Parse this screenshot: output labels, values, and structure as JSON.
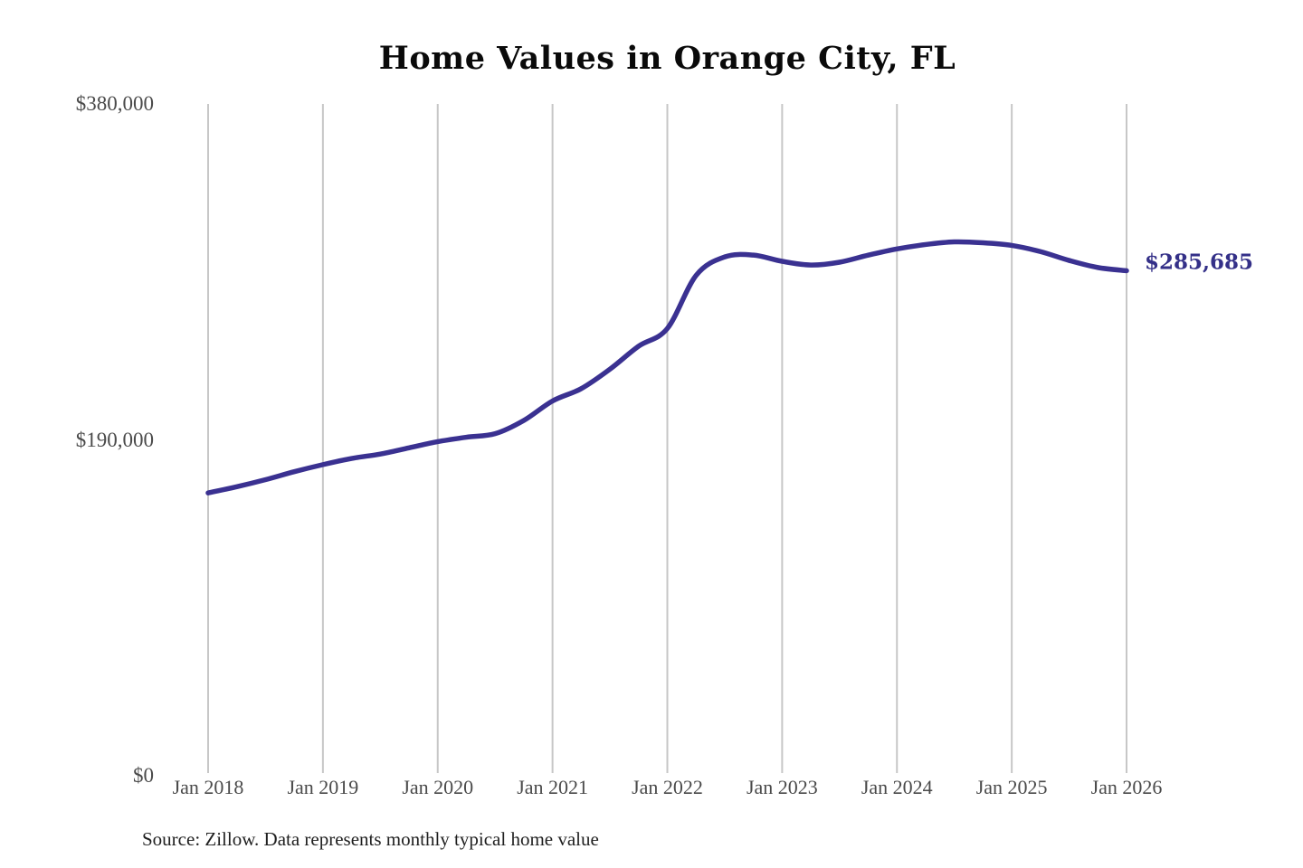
{
  "title": "Home Values in Orange City, FL",
  "source_note": "Source: Zillow. Data represents monthly typical home value",
  "current_value_label": "$285,685",
  "colors": {
    "line": "#3a3191",
    "value_label": "#343088",
    "grid": "#c7c7c7",
    "tick_text": "#4a4a4a",
    "title_text": "#0a0a0a",
    "source_text": "#1f1f1f",
    "background": "#ffffff"
  },
  "chart_data": {
    "type": "line",
    "title": "Home Values in Orange City, FL",
    "xlabel": "",
    "ylabel": "",
    "ylim": [
      0,
      380000
    ],
    "grid": "vertical-only",
    "legend": "none",
    "x_ticks": [
      "Jan 2018",
      "Jan 2019",
      "Jan 2020",
      "Jan 2021",
      "Jan 2022",
      "Jan 2023",
      "Jan 2024",
      "Jan 2025",
      "Jan 2026"
    ],
    "y_ticks": [
      {
        "label": "$0",
        "value": 0
      },
      {
        "label": "$190,000",
        "value": 190000
      },
      {
        "label": "$380,000",
        "value": 380000
      }
    ],
    "end_annotation": {
      "text": "$285,685",
      "value": 285685,
      "attached_to": "last-point"
    },
    "series": [
      {
        "name": "Monthly typical home value (USD)",
        "points": [
          {
            "date": "2018-01",
            "value": 160000
          },
          {
            "date": "2018-04",
            "value": 163500
          },
          {
            "date": "2018-07",
            "value": 167500
          },
          {
            "date": "2018-10",
            "value": 172000
          },
          {
            "date": "2019-01",
            "value": 176000
          },
          {
            "date": "2019-04",
            "value": 179500
          },
          {
            "date": "2019-07",
            "value": 182000
          },
          {
            "date": "2019-10",
            "value": 185500
          },
          {
            "date": "2020-01",
            "value": 189000
          },
          {
            "date": "2020-04",
            "value": 191500
          },
          {
            "date": "2020-07",
            "value": 193500
          },
          {
            "date": "2020-10",
            "value": 201000
          },
          {
            "date": "2021-01",
            "value": 212000
          },
          {
            "date": "2021-04",
            "value": 219000
          },
          {
            "date": "2021-07",
            "value": 230000
          },
          {
            "date": "2021-10",
            "value": 243000
          },
          {
            "date": "2022-01",
            "value": 253000
          },
          {
            "date": "2022-04",
            "value": 283000
          },
          {
            "date": "2022-07",
            "value": 293500
          },
          {
            "date": "2022-10",
            "value": 294500
          },
          {
            "date": "2023-01",
            "value": 291000
          },
          {
            "date": "2023-04",
            "value": 288900
          },
          {
            "date": "2023-07",
            "value": 290500
          },
          {
            "date": "2023-10",
            "value": 294500
          },
          {
            "date": "2024-01",
            "value": 298000
          },
          {
            "date": "2024-04",
            "value": 300500
          },
          {
            "date": "2024-07",
            "value": 302000
          },
          {
            "date": "2024-10",
            "value": 301500
          },
          {
            "date": "2025-01",
            "value": 300000
          },
          {
            "date": "2025-04",
            "value": 296500
          },
          {
            "date": "2025-07",
            "value": 291500
          },
          {
            "date": "2025-10",
            "value": 287500
          },
          {
            "date": "2026-01",
            "value": 285685
          }
        ]
      }
    ]
  }
}
